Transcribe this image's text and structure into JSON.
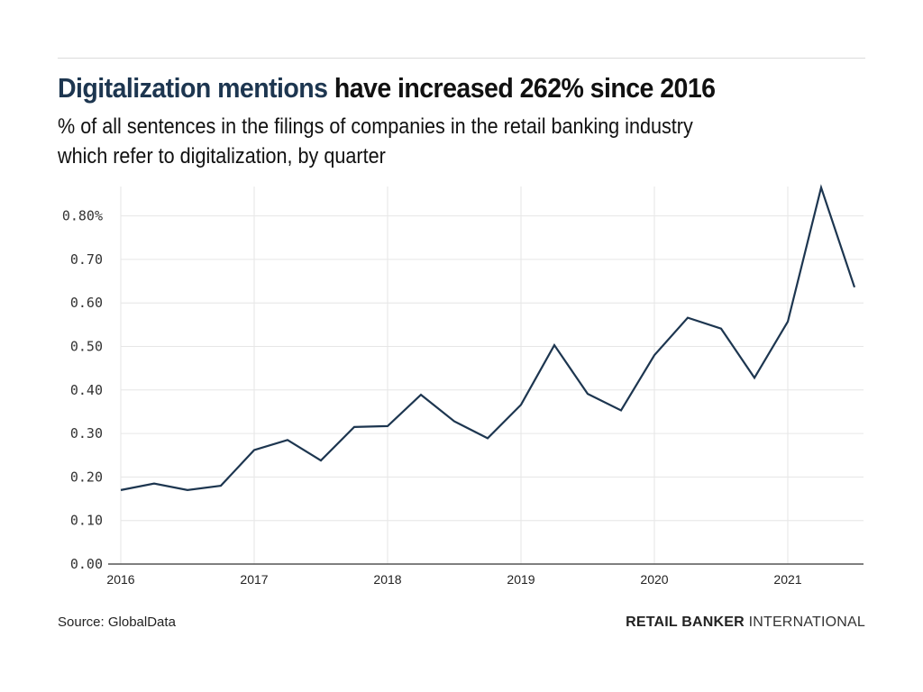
{
  "header": {
    "title_highlight": "Digitalization mentions",
    "title_rest": " have increased 262% since 2016",
    "subtitle_line1": "% of all sentences in the filings of companies in the retail banking industry",
    "subtitle_line2": "which refer to digitalization, by quarter"
  },
  "footer": {
    "source": "Source: GlobalData",
    "brand_bold": "RETAIL BANKER",
    "brand_light": " INTERNATIONAL"
  },
  "colors": {
    "line": "#1d3650",
    "title_highlight": "#1d3650",
    "grid": "#e6e6e6",
    "axis": "#555555"
  },
  "chart_data": {
    "type": "line",
    "title": "Digitalization mentions have increased 262% since 2016",
    "subtitle": "% of all sentences in the filings of companies in the retail banking industry which refer to digitalization, by quarter",
    "xlabel": "",
    "ylabel": "",
    "x": [
      "2016Q1",
      "2016Q2",
      "2016Q3",
      "2016Q4",
      "2017Q1",
      "2017Q2",
      "2017Q3",
      "2017Q4",
      "2018Q1",
      "2018Q2",
      "2018Q3",
      "2018Q4",
      "2019Q1",
      "2019Q2",
      "2019Q3",
      "2019Q4",
      "2020Q1",
      "2020Q2",
      "2020Q3",
      "2020Q4",
      "2021Q1",
      "2021Q2",
      "2021Q3"
    ],
    "series": [
      {
        "name": "Digitalization mentions (%)",
        "values": [
          0.17,
          0.185,
          0.17,
          0.18,
          0.262,
          0.285,
          0.238,
          0.315,
          0.317,
          0.389,
          0.328,
          0.289,
          0.366,
          0.503,
          0.391,
          0.353,
          0.48,
          0.566,
          0.541,
          0.428,
          0.557,
          0.865,
          0.636
        ]
      }
    ],
    "ylim": [
      0,
      0.87
    ],
    "xlim_quarters": [
      0,
      22.7
    ],
    "yticks": [
      0,
      0.1,
      0.2,
      0.3,
      0.4,
      0.5,
      0.6,
      0.7,
      0.8
    ],
    "ytick_labels": [
      "0.00",
      "0.10",
      "0.20",
      "0.30",
      "0.40",
      "0.50",
      "0.60",
      "0.70",
      "0.80%"
    ],
    "xticks_years": [
      "2016",
      "2017",
      "2018",
      "2019",
      "2020",
      "2021"
    ],
    "grid": true,
    "legend": "none"
  }
}
